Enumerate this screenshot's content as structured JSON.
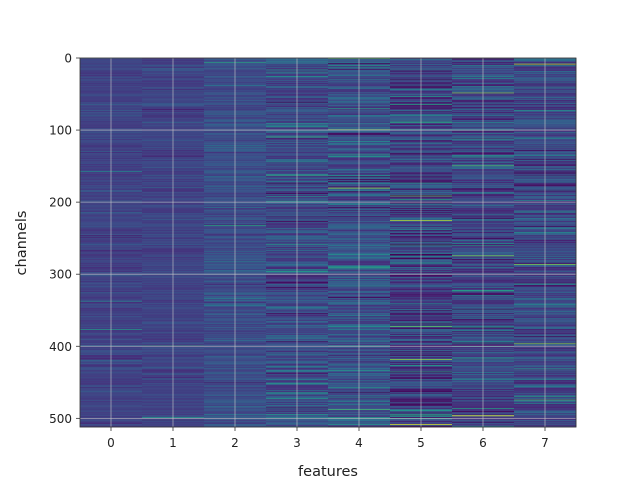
{
  "chart_data": {
    "type": "heatmap",
    "title": "",
    "xlabel": "features",
    "ylabel": "channels",
    "x_categories": [
      "0",
      "1",
      "2",
      "3",
      "4",
      "5",
      "6",
      "7"
    ],
    "xlim": [
      -0.5,
      7.5
    ],
    "ylim": [
      512,
      0
    ],
    "n_channels": 512,
    "n_features": 8,
    "y_ticks": [
      0,
      100,
      200,
      300,
      400,
      500
    ],
    "y_tick_labels": [
      "0",
      "100",
      "200",
      "300",
      "400",
      "500"
    ],
    "y_inverted": true,
    "grid": true,
    "colormap": "viridis",
    "colors": {
      "low": "#440154",
      "mid_low": "#3b528b",
      "mid": "#21918c",
      "mid_high": "#5ec962",
      "high": "#fde725",
      "grid": "#c8c8c8"
    },
    "column_profiles": [
      {
        "feature": "0",
        "mean": 0.2,
        "spread": 0.05
      },
      {
        "feature": "1",
        "mean": 0.2,
        "spread": 0.05
      },
      {
        "feature": "2",
        "mean": 0.24,
        "spread": 0.07
      },
      {
        "feature": "3",
        "mean": 0.24,
        "spread": 0.12
      },
      {
        "feature": "4",
        "mean": 0.26,
        "spread": 0.14
      },
      {
        "feature": "5",
        "mean": 0.2,
        "spread": 0.16
      },
      {
        "feature": "6",
        "mean": 0.22,
        "spread": 0.14
      },
      {
        "feature": "7",
        "mean": 0.22,
        "spread": 0.13
      }
    ],
    "highlights": [
      {
        "feature": "0",
        "channel": 157,
        "value": 0.45
      },
      {
        "feature": "0",
        "channel": 337,
        "value": 0.45
      },
      {
        "feature": "0",
        "channel": 376,
        "value": 0.55
      },
      {
        "feature": "1",
        "channel": 399,
        "value": 0.6
      },
      {
        "feature": "1",
        "channel": 498,
        "value": 0.55
      },
      {
        "feature": "2",
        "channel": 6,
        "value": 0.6
      },
      {
        "feature": "2",
        "channel": 232,
        "value": 0.6
      },
      {
        "feature": "3",
        "channel": 109,
        "value": 0.65
      },
      {
        "feature": "3",
        "channel": 162,
        "value": 0.65
      },
      {
        "feature": "3",
        "channel": 198,
        "value": 0.55
      },
      {
        "feature": "4",
        "channel": 0,
        "value": 0.8
      },
      {
        "feature": "4",
        "channel": 99,
        "value": 0.8
      },
      {
        "feature": "4",
        "channel": 180,
        "value": 0.85
      },
      {
        "feature": "4",
        "channel": 487,
        "value": 0.7
      },
      {
        "feature": "5",
        "channel": 191,
        "value": 0.75
      },
      {
        "feature": "5",
        "channel": 225,
        "value": 0.9
      },
      {
        "feature": "5",
        "channel": 372,
        "value": 0.75
      },
      {
        "feature": "5",
        "channel": 418,
        "value": 0.85
      },
      {
        "feature": "5",
        "channel": 508,
        "value": 0.95
      },
      {
        "feature": "6",
        "channel": 48,
        "value": 0.8
      },
      {
        "feature": "6",
        "channel": 149,
        "value": 0.7
      },
      {
        "feature": "6",
        "channel": 274,
        "value": 0.8
      },
      {
        "feature": "6",
        "channel": 496,
        "value": 1.0
      },
      {
        "feature": "7",
        "channel": 8,
        "value": 0.9
      },
      {
        "feature": "7",
        "channel": 286,
        "value": 0.8
      },
      {
        "feature": "7",
        "channel": 396,
        "value": 0.8
      },
      {
        "feature": "7",
        "channel": 474,
        "value": 0.7
      }
    ]
  }
}
